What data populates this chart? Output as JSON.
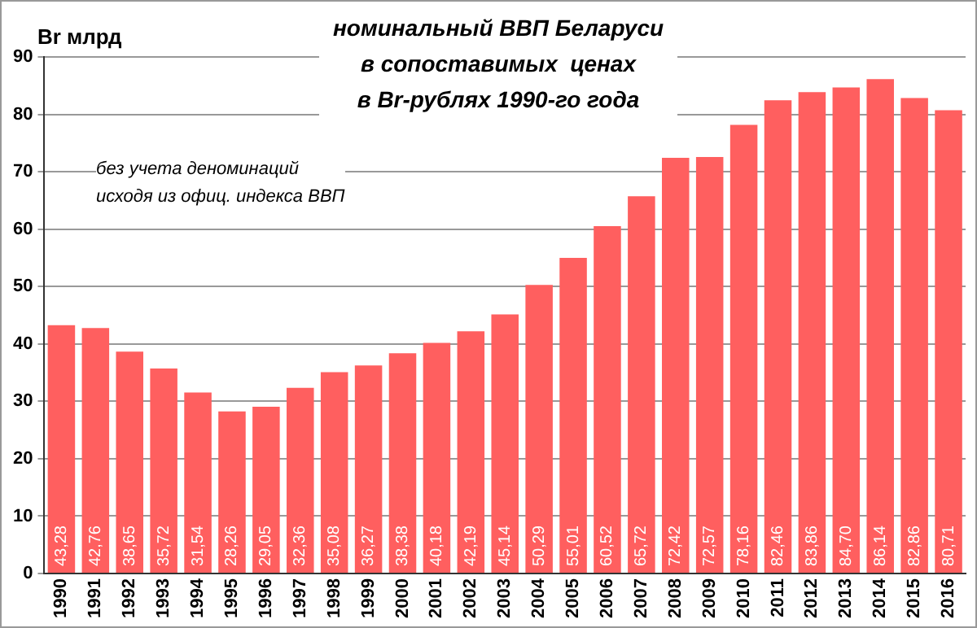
{
  "chart_data": {
    "type": "bar",
    "title": "номинальный ВВП Беларуси\nв сопоставимых  ценах\nв Br-рублях 1990-го года",
    "ylabel": "Br млрд",
    "annotations": [
      "без учета деноминаций\nисходя из офиц. индекса ВВП"
    ],
    "categories": [
      "1990",
      "1991",
      "1992",
      "1993",
      "1994",
      "1995",
      "1996",
      "1997",
      "1998",
      "1999",
      "2000",
      "2001",
      "2002",
      "2003",
      "2004",
      "2005",
      "2006",
      "2007",
      "2008",
      "2009",
      "2010",
      "2011",
      "2012",
      "2013",
      "2014",
      "2015",
      "2016"
    ],
    "values": [
      43.28,
      42.76,
      38.65,
      35.72,
      31.54,
      28.26,
      29.05,
      32.36,
      35.08,
      36.27,
      38.38,
      40.18,
      42.19,
      45.14,
      50.29,
      55.01,
      60.52,
      65.72,
      72.42,
      72.57,
      78.16,
      82.46,
      83.86,
      84.7,
      86.14,
      82.86,
      80.71
    ],
    "value_labels": [
      "43,28",
      "42,76",
      "38,65",
      "35,72",
      "31,54",
      "28,26",
      "29,05",
      "32,36",
      "35,08",
      "36,27",
      "38,38",
      "40,18",
      "42,19",
      "45,14",
      "50,29",
      "55,01",
      "60,52",
      "65,72",
      "72,42",
      "72,57",
      "78,16",
      "82,46",
      "83,86",
      "84,70",
      "86,14",
      "82,86",
      "80,71"
    ],
    "color": "#ff5f5f",
    "ylim": [
      0,
      90
    ],
    "yticks": [
      0,
      10,
      20,
      30,
      40,
      50,
      60,
      70,
      80,
      90
    ],
    "grid": "y"
  }
}
